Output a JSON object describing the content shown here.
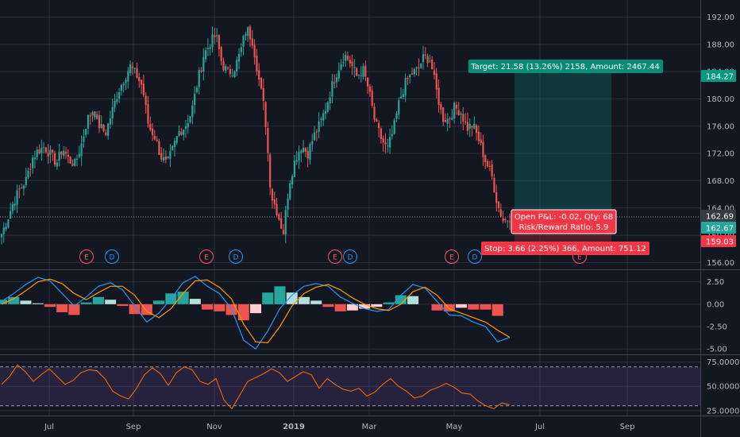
{
  "colors": {
    "background": "#131722",
    "grid": "#2a2e39",
    "axis_text": "#b2b5be",
    "up": "#26a69a",
    "down": "#ef5350",
    "macd": "#2196f3",
    "signal": "#ff9800",
    "rsi": "#ff6d00",
    "rsi_band": "#7e57c2",
    "target": "#089981",
    "stop": "#f23645",
    "earnings": "#f7525f",
    "dividend": "#2196f3"
  },
  "chart_data": [
    {
      "type": "candlestick",
      "title": "",
      "x_tick_labels": [
        "Jul",
        "Sep",
        "Nov",
        "2019",
        "Mar",
        "May",
        "Jul",
        "Sep"
      ],
      "y_tick_labels": [
        "192.00",
        "188.00",
        "184.00",
        "180.00",
        "176.00",
        "172.00",
        "168.00",
        "164.00",
        "160.00",
        "156.00"
      ],
      "ylim": [
        155,
        194.5
      ],
      "price_labels": [
        {
          "value": 184.27,
          "text": "184.27",
          "color": "#089981"
        },
        {
          "value": 162.69,
          "text": "162.69",
          "color": "#363a45"
        },
        {
          "value": 162.67,
          "text": "162.67",
          "color": "#26a69a"
        },
        {
          "value": 159.03,
          "text": "159.03",
          "color": "#f23645"
        }
      ],
      "approx_closes": [
        160.2,
        162.5,
        165.0,
        166.8,
        168.1,
        171.3,
        172.5,
        173.0,
        171.8,
        170.6,
        172.8,
        171.0,
        170.4,
        173.2,
        177.0,
        178.5,
        176.0,
        175.0,
        178.0,
        181.0,
        183.0,
        184.8,
        183.5,
        181.8,
        176.0,
        174.5,
        171.6,
        170.3,
        172.8,
        175.2,
        176.0,
        178.0,
        182.5,
        186.4,
        188.1,
        189.4,
        185.1,
        183.8,
        184.4,
        186.8,
        190.4,
        188.5,
        183.0,
        178.0,
        166.0,
        163.5,
        160.3,
        167.8,
        171.3,
        173.2,
        172.0,
        174.5,
        176.3,
        178.8,
        182.0,
        184.5,
        186.5,
        185.3,
        183.3,
        184.4,
        181.2,
        176.5,
        174.2,
        172.5,
        175.4,
        179.8,
        182.4,
        183.7,
        184.3,
        186.2,
        185.8,
        181.3,
        177.2,
        177.0,
        178.8,
        178.1,
        175.7,
        176.2,
        173.8,
        171.0,
        169.0,
        164.5,
        162.0,
        162.7
      ],
      "risk_reward": {
        "target_label": "Target: 21.58 (13.26%) 2158, Amount: 2467.44",
        "stop_label": "Stop: 3.66 (2.25%) 366, Amount: 751.12",
        "open_pnl_label": "Open P&L: -0.02, Qty: 68",
        "ratio_label": "Risk/Reward Ratio: 5.9",
        "entry": 162.69,
        "target": 184.27,
        "stop": 159.03
      },
      "events": [
        "E",
        "D",
        "E",
        "D",
        "E",
        "D",
        "E",
        "D",
        "E"
      ]
    },
    {
      "type": "line",
      "name": "MACD",
      "y_tick_labels": [
        "2.50",
        "0.00",
        "-2.50",
        "-5.00"
      ],
      "ylim": [
        -5.6,
        3.8
      ],
      "series": [
        {
          "name": "",
          "values": [
            0.3,
            1.2,
            2.2,
            3.0,
            2.6,
            1.2,
            -0.2,
            0.8,
            2.0,
            2.4,
            1.6,
            -0.2,
            -2.0,
            -1.0,
            0.6,
            2.4,
            3.1,
            2.0,
            1.2,
            -0.5,
            -4.0,
            -5.0,
            -3.0,
            -0.5,
            1.0,
            2.0,
            2.3,
            2.0,
            0.8,
            0.1,
            -0.5,
            -0.8,
            -0.6,
            1.0,
            2.2,
            1.8,
            0.3,
            -1.2,
            -1.3,
            -2.0,
            -2.5,
            -4.2,
            -3.7
          ]
        },
        {
          "name": "",
          "values": [
            0.0,
            0.6,
            1.5,
            2.5,
            2.8,
            2.3,
            1.2,
            0.5,
            1.3,
            2.0,
            2.0,
            1.0,
            -0.8,
            -1.5,
            -0.5,
            1.2,
            2.6,
            2.7,
            1.9,
            0.6,
            -2.2,
            -4.2,
            -4.3,
            -2.5,
            -0.2,
            1.2,
            1.9,
            2.2,
            1.6,
            0.7,
            0.0,
            -0.5,
            -0.7,
            0.0,
            1.4,
            1.9,
            1.0,
            -0.5,
            -1.0,
            -1.5,
            -2.0,
            -2.9,
            -3.7
          ]
        }
      ],
      "histogram": [
        0.5,
        0.8,
        0.4,
        0.1,
        -0.3,
        -0.9,
        -1.2,
        0.2,
        0.8,
        0.5,
        -0.2,
        -1.1,
        -1.2,
        0.4,
        1.2,
        1.4,
        0.6,
        -0.6,
        -0.8,
        -1.2,
        -1.8,
        -1.0,
        1.3,
        2.0,
        1.3,
        0.8,
        0.4,
        -0.3,
        -0.8,
        -0.7,
        -0.5,
        -0.3,
        0.2,
        1.0,
        0.9,
        0.0,
        -0.7,
        -0.8,
        -0.4,
        -0.6,
        -0.6,
        -1.3,
        0.0
      ]
    },
    {
      "type": "line",
      "name": "RSI",
      "y_tick_labels": [
        "75.0000",
        "50.0000",
        "25.0000"
      ],
      "ylim": [
        20,
        82
      ],
      "bands": [
        30,
        70
      ],
      "series": [
        {
          "name": "",
          "values": [
            52,
            60,
            72,
            65,
            55,
            62,
            68,
            60,
            52,
            56,
            64,
            67,
            66,
            58,
            45,
            40,
            37,
            48,
            62,
            69,
            63,
            51,
            64,
            70,
            67,
            55,
            52,
            58,
            36,
            27,
            41,
            55,
            59,
            63,
            68,
            64,
            55,
            60,
            65,
            62,
            48,
            58,
            52,
            47,
            45,
            48,
            40,
            44,
            52,
            58,
            50,
            45,
            38,
            40,
            46,
            49,
            53,
            49,
            43,
            42,
            35,
            30,
            27,
            33,
            31
          ]
        }
      ]
    }
  ]
}
